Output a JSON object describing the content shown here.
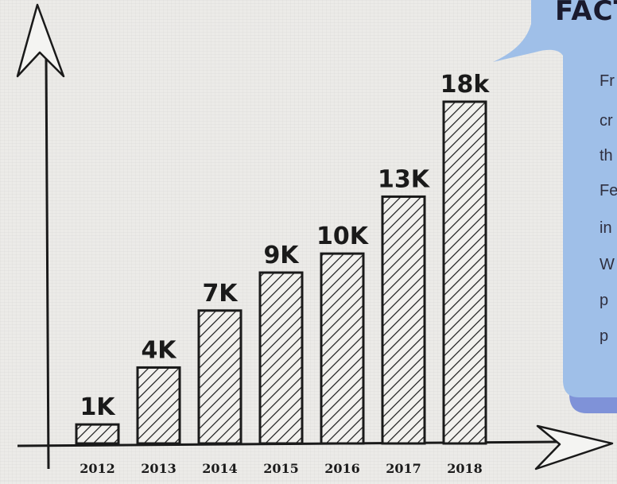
{
  "chart_data": {
    "type": "bar",
    "categories": [
      "2012",
      "2013",
      "2014",
      "2015",
      "2016",
      "2017",
      "2018"
    ],
    "values": [
      1,
      4,
      7,
      9,
      10,
      13,
      18
    ],
    "value_labels": [
      "1K",
      "4K",
      "7K",
      "9K",
      "10K",
      "13K",
      "18k"
    ],
    "title": "",
    "xlabel": "",
    "ylabel": "",
    "ylim": [
      0,
      20
    ],
    "grid": false,
    "bar_style": "hatched"
  },
  "facts": {
    "title": "FACT",
    "lines": [
      "Fr",
      "cr",
      "th",
      "Fe",
      "in",
      "W",
      "p",
      "p"
    ],
    "colors": {
      "bubble": "#9fbfe8",
      "bubble_shadow": "#7f92d8",
      "ink": "#1a1a1a"
    }
  }
}
